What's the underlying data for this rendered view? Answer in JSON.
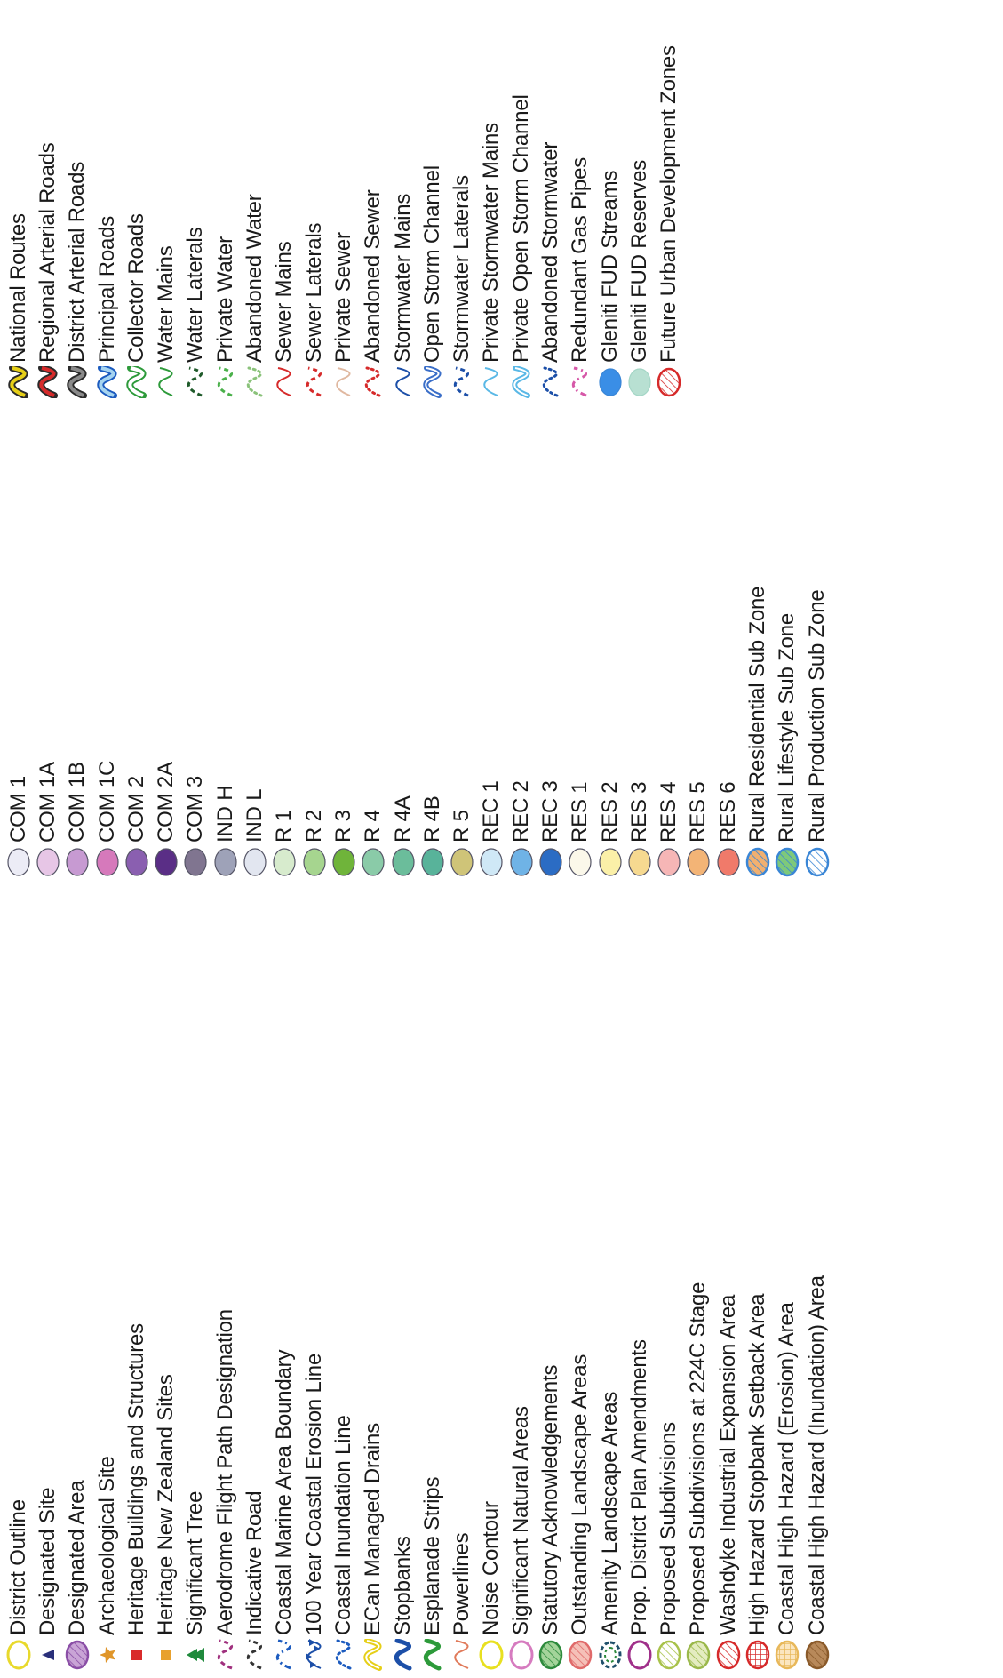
{
  "legend": {
    "columns": [
      {
        "items": [
          {
            "label": "District Outline",
            "symbol": "ellipse-outline",
            "stroke": "#e8d92c",
            "fill": "#ffffff"
          },
          {
            "label": "Designated Site",
            "symbol": "triangle",
            "fill": "#2a2f7a"
          },
          {
            "label": "Designated Area",
            "symbol": "ellipse-hatch",
            "stroke": "#8a4ea6",
            "fill": "#c9a4d6"
          },
          {
            "label": "Archaeological Site",
            "symbol": "star",
            "fill": "#e0962a"
          },
          {
            "label": "Heritage Buildings and Structures",
            "symbol": "square",
            "fill": "#d92b2b"
          },
          {
            "label": "Heritage New Zealand Sites",
            "symbol": "square",
            "fill": "#e8a12e"
          },
          {
            "label": "Significant Tree",
            "symbol": "tree",
            "fill": "#1f8a3c"
          },
          {
            "label": "Aerodrome Flight Path Designation",
            "symbol": "line-dash",
            "stroke": "#a0307e"
          },
          {
            "label": "Indicative Road",
            "symbol": "line-dash",
            "stroke": "#333333"
          },
          {
            "label": "Coastal Marine Area Boundary",
            "symbol": "line-dotdash",
            "stroke": "#1c5bbf"
          },
          {
            "label": "100 Year Coastal Erosion Line",
            "symbol": "line-triangles",
            "stroke": "#1c4fa8"
          },
          {
            "label": "Coastal Inundation Line",
            "symbol": "line-dots",
            "stroke": "#1c5bbf"
          },
          {
            "label": "ECan Managed Drains",
            "symbol": "line-double",
            "stroke": "#e6cf18"
          },
          {
            "label": "Stopbanks",
            "symbol": "line-thick",
            "stroke": "#1c4fa8"
          },
          {
            "label": "Esplanade Strips",
            "symbol": "line-thick",
            "stroke": "#2d9a3a"
          },
          {
            "label": "Powerlines",
            "symbol": "line-thin",
            "stroke": "#e07a5a"
          },
          {
            "label": "Noise Contour",
            "symbol": "ellipse-outline",
            "stroke": "#e8e020",
            "fill": "#ffffff"
          },
          {
            "label": "Significant Natural Areas",
            "symbol": "ellipse-outline",
            "stroke": "#d67bbf",
            "fill": "#ffffff"
          },
          {
            "label": "Statutory Acknowledgements",
            "symbol": "ellipse-hatch",
            "stroke": "#2d8a3c",
            "fill": "#a4d49a"
          },
          {
            "label": "Outstanding Landscape Areas",
            "symbol": "ellipse-hatch",
            "stroke": "#e06a6a",
            "fill": "#f5c0b8"
          },
          {
            "label": "Amenity Landscape Areas",
            "symbol": "ellipse-dashed",
            "stroke": "#1f4f6a",
            "fill": "#ffffff"
          },
          {
            "label": "Prop. District Plan Amendments",
            "symbol": "ellipse-outline",
            "stroke": "#a0308a",
            "fill": "#ffffff"
          },
          {
            "label": "Proposed Subdivisions",
            "symbol": "ellipse-hatch",
            "stroke": "#a8c24a",
            "fill": "#ffffff"
          },
          {
            "label": "Proposed Subdivisions at 224C Stage",
            "symbol": "ellipse-hatch",
            "stroke": "#9ab84a",
            "fill": "#e4ecc0"
          },
          {
            "label": "Washdyke Industrial Expansion Area",
            "symbol": "ellipse-hatch",
            "stroke": "#d62a2a",
            "fill": "#ffffff"
          },
          {
            "label": "High Hazard Stopbank Setback Area",
            "symbol": "ellipse-grid",
            "stroke": "#d62a2a",
            "fill": "#ffffff"
          },
          {
            "label": "Coastal High Hazard (Erosion) Area",
            "symbol": "ellipse-grid",
            "stroke": "#e8b85a",
            "fill": "#fbe6c0"
          },
          {
            "label": "Coastal High Hazard (Inundation) Area",
            "symbol": "ellipse-hatch",
            "stroke": "#8a5a2a",
            "fill": "#b8895a"
          }
        ]
      },
      {
        "items": [
          {
            "label": "COM 1",
            "symbol": "ellipse-fill",
            "stroke": "#555566",
            "fill": "#ececf6"
          },
          {
            "label": "COM 1A",
            "symbol": "ellipse-fill",
            "stroke": "#555566",
            "fill": "#e7c6e6"
          },
          {
            "label": "COM 1B",
            "symbol": "ellipse-fill",
            "stroke": "#555566",
            "fill": "#c79ad2"
          },
          {
            "label": "COM 1C",
            "symbol": "ellipse-fill",
            "stroke": "#555566",
            "fill": "#d679bb"
          },
          {
            "label": "COM 2",
            "symbol": "ellipse-fill",
            "stroke": "#555566",
            "fill": "#8a5fb0"
          },
          {
            "label": "COM 2A",
            "symbol": "ellipse-fill",
            "stroke": "#555566",
            "fill": "#5a2e86"
          },
          {
            "label": "COM 3",
            "symbol": "ellipse-fill",
            "stroke": "#555566",
            "fill": "#807590"
          },
          {
            "label": "IND H",
            "symbol": "ellipse-fill",
            "stroke": "#555566",
            "fill": "#9ea2b8"
          },
          {
            "label": "IND L",
            "symbol": "ellipse-fill",
            "stroke": "#555566",
            "fill": "#e2e6f0"
          },
          {
            "label": "R 1",
            "symbol": "ellipse-fill",
            "stroke": "#555566",
            "fill": "#d7ebcd"
          },
          {
            "label": "R 2",
            "symbol": "ellipse-fill",
            "stroke": "#555566",
            "fill": "#a6d58f"
          },
          {
            "label": "R 3",
            "symbol": "ellipse-fill",
            "stroke": "#555566",
            "fill": "#6fb43a"
          },
          {
            "label": "R 4",
            "symbol": "ellipse-fill",
            "stroke": "#555566",
            "fill": "#8acba8"
          },
          {
            "label": "R 4A",
            "symbol": "ellipse-fill",
            "stroke": "#555566",
            "fill": "#6bbd9b"
          },
          {
            "label": "R 4B",
            "symbol": "ellipse-fill",
            "stroke": "#555566",
            "fill": "#58b39a"
          },
          {
            "label": "R 5",
            "symbol": "ellipse-fill",
            "stroke": "#555566",
            "fill": "#cfc478"
          },
          {
            "label": "REC 1",
            "symbol": "ellipse-fill",
            "stroke": "#555566",
            "fill": "#cfe8f6"
          },
          {
            "label": "REC 2",
            "symbol": "ellipse-fill",
            "stroke": "#555566",
            "fill": "#6fb3e6"
          },
          {
            "label": "REC 3",
            "symbol": "ellipse-fill",
            "stroke": "#555566",
            "fill": "#2b6cc4"
          },
          {
            "label": "RES 1",
            "symbol": "ellipse-fill",
            "stroke": "#555566",
            "fill": "#fbf8ea"
          },
          {
            "label": "RES 2",
            "symbol": "ellipse-fill",
            "stroke": "#555566",
            "fill": "#fbf0a8"
          },
          {
            "label": "RES 3",
            "symbol": "ellipse-fill",
            "stroke": "#555566",
            "fill": "#f6d990"
          },
          {
            "label": "RES 4",
            "symbol": "ellipse-fill",
            "stroke": "#555566",
            "fill": "#f6b6b6"
          },
          {
            "label": "RES 5",
            "symbol": "ellipse-fill",
            "stroke": "#555566",
            "fill": "#f3b476"
          },
          {
            "label": "RES 6",
            "symbol": "ellipse-fill",
            "stroke": "#555566",
            "fill": "#f07a6a"
          },
          {
            "label": "Rural Residential Sub Zone",
            "symbol": "ellipse-hatch",
            "stroke": "#3a86d6",
            "fill": "#f1b070"
          },
          {
            "label": "Rural Lifestyle Sub Zone",
            "symbol": "ellipse-hatch",
            "stroke": "#3a86d6",
            "fill": "#7ec97a"
          },
          {
            "label": "Rural Production Sub Zone",
            "symbol": "ellipse-hatch",
            "stroke": "#3a86d6",
            "fill": "#ffffff"
          }
        ]
      },
      {
        "items": [
          {
            "label": "National Routes",
            "symbol": "road-double",
            "stroke": "#2a2a2a",
            "fill": "#e6cf18"
          },
          {
            "label": "Regional Arterial Roads",
            "symbol": "road-double",
            "stroke": "#2a2a2a",
            "fill": "#d62a2a"
          },
          {
            "label": "District Arterial Roads",
            "symbol": "road-double",
            "stroke": "#2a2a2a",
            "fill": "#8a8a8a"
          },
          {
            "label": "Principal Roads",
            "symbol": "road-double",
            "stroke": "#1c5bbf",
            "fill": "#a6d4f0"
          },
          {
            "label": "Collector Roads",
            "symbol": "road-double",
            "stroke": "#2d9a3a",
            "fill": "#ffffff"
          },
          {
            "label": "Water Mains",
            "symbol": "line-thin",
            "stroke": "#2d9a3a"
          },
          {
            "label": "Water Laterals",
            "symbol": "line-dash",
            "stroke": "#1f5a2a"
          },
          {
            "label": "Private Water",
            "symbol": "line-dash",
            "stroke": "#4ab04a"
          },
          {
            "label": "Abandoned Water",
            "symbol": "line-dots",
            "stroke": "#8ac27a"
          },
          {
            "label": "Sewer Mains",
            "symbol": "line-thin",
            "stroke": "#d62a2a"
          },
          {
            "label": "Sewer Laterals",
            "symbol": "line-dash",
            "stroke": "#d62a2a"
          },
          {
            "label": "Private Sewer",
            "symbol": "line-thin",
            "stroke": "#e0b8a0"
          },
          {
            "label": "Abandoned Sewer",
            "symbol": "line-dots",
            "stroke": "#d62a2a"
          },
          {
            "label": "Stormwater Mains",
            "symbol": "line-thin",
            "stroke": "#1c4fa8"
          },
          {
            "label": "Open Storm Channel",
            "symbol": "line-double",
            "stroke": "#3a6ec8"
          },
          {
            "label": "Stormwater Laterals",
            "symbol": "line-dash",
            "stroke": "#1c4fa8"
          },
          {
            "label": "Private Stormwater Mains",
            "symbol": "line-thin",
            "stroke": "#5ab8e6"
          },
          {
            "label": "Private Open Storm Channel",
            "symbol": "line-double",
            "stroke": "#5ab8e6"
          },
          {
            "label": "Abandoned Stormwater",
            "symbol": "line-dots",
            "stroke": "#1c4fa8"
          },
          {
            "label": "Redundant Gas Pipes",
            "symbol": "line-dotdash",
            "stroke": "#d658a8"
          },
          {
            "label": "Gleniti FUD Streams",
            "symbol": "ellipse-fill",
            "stroke": "#3a86d6",
            "fill": "#3a8ee6"
          },
          {
            "label": "Gleniti FUD Reserves",
            "symbol": "ellipse-fill",
            "stroke": "#a4d6c6",
            "fill": "#b8e0d2"
          },
          {
            "label": "Future Urban Development Zones",
            "symbol": "ellipse-hatch",
            "stroke": "#d62a2a",
            "fill": "#ffffff"
          }
        ]
      }
    ]
  }
}
